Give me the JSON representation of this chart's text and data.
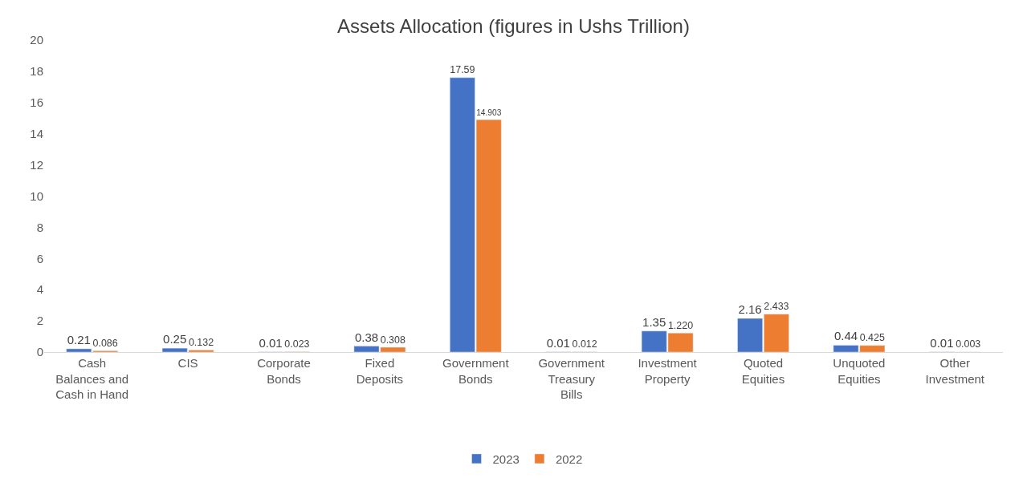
{
  "chart_data": {
    "type": "bar",
    "title": "Assets Allocation (figures in Ushs Trillion)",
    "categories": [
      "Cash Balances and Cash in Hand",
      "CIS",
      "Corporate Bonds",
      "Fixed Deposits",
      "Government Bonds",
      "Government Treasury Bills",
      "Investment Property",
      "Quoted Equities",
      "Unquoted Equities",
      "Other Investment"
    ],
    "series": [
      {
        "name": "2023",
        "color": "#4472c4",
        "values": [
          0.21,
          0.25,
          0.01,
          0.38,
          17.59,
          0.01,
          1.35,
          2.16,
          0.44,
          0.01
        ],
        "value_labels": [
          "0.21",
          "0.25",
          "0.01",
          "0.38",
          "17.59",
          "0.01",
          "1.35",
          "2.16",
          "0.44",
          "0.01"
        ]
      },
      {
        "name": "2022",
        "color": "#ed7d31",
        "values": [
          0.086,
          0.132,
          0.023,
          0.308,
          14.903,
          0.012,
          1.22,
          2.433,
          0.425,
          0.003
        ],
        "value_labels": [
          "0.086",
          "0.132",
          "0.023",
          "0.308",
          "14.903",
          "0.012",
          "1.220",
          "2.433",
          "0.425",
          "0.003"
        ]
      }
    ],
    "ylim": [
      0,
      20
    ],
    "yticks": [
      0,
      2,
      4,
      6,
      8,
      10,
      12,
      14,
      16,
      18,
      20
    ],
    "grid": false,
    "legend": "bottom"
  }
}
